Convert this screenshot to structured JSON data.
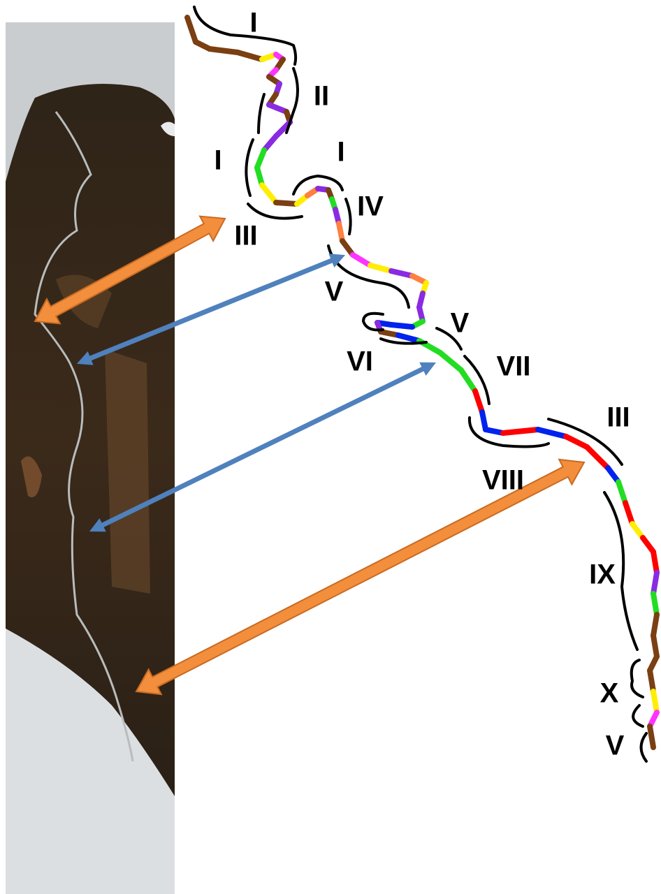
{
  "labels": [
    "I",
    "II",
    "I",
    "I",
    "IV",
    "III",
    "V",
    "V",
    "VI",
    "VII",
    "III",
    "VIII",
    "IX",
    "X",
    "V"
  ]
}
